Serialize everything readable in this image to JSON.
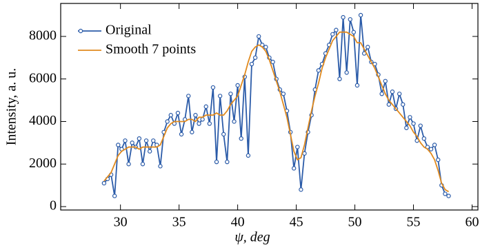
{
  "chart_data": {
    "type": "line",
    "xlabel": "ψ, deg",
    "ylabel": "Intensity, a. u.",
    "x": [
      28.6,
      28.9,
      29.2,
      29.5,
      29.8,
      30.1,
      30.4,
      30.7,
      31.0,
      31.3,
      31.6,
      31.9,
      32.2,
      32.5,
      32.8,
      33.1,
      33.4,
      33.7,
      34.0,
      34.3,
      34.6,
      34.9,
      35.2,
      35.5,
      35.8,
      36.1,
      36.4,
      36.7,
      37.0,
      37.3,
      37.6,
      37.9,
      38.2,
      38.5,
      38.8,
      39.1,
      39.4,
      39.7,
      40.0,
      40.3,
      40.6,
      40.9,
      41.2,
      41.5,
      41.8,
      42.1,
      42.4,
      42.7,
      43.0,
      43.3,
      43.6,
      43.9,
      44.2,
      44.5,
      44.8,
      45.1,
      45.4,
      45.7,
      46.0,
      46.3,
      46.6,
      46.9,
      47.2,
      47.5,
      47.8,
      48.1,
      48.4,
      48.7,
      49.0,
      49.3,
      49.6,
      49.9,
      50.2,
      50.5,
      50.8,
      51.1,
      51.4,
      51.7,
      52.0,
      52.3,
      52.6,
      52.9,
      53.2,
      53.5,
      53.8,
      54.1,
      54.4,
      54.7,
      55.0,
      55.3,
      55.6,
      55.9,
      56.2,
      56.5,
      56.8,
      57.1,
      57.4,
      57.7,
      58.0
    ],
    "series": [
      {
        "name": "Original",
        "color": "#2b5ba8",
        "markers": true,
        "values": [
          1100,
          1300,
          1500,
          500,
          2900,
          2700,
          3100,
          2000,
          3000,
          2800,
          3200,
          2000,
          3100,
          2600,
          3100,
          2900,
          1900,
          3500,
          4000,
          4300,
          3900,
          4400,
          3400,
          4100,
          5200,
          3500,
          4300,
          3900,
          4100,
          4700,
          3900,
          5600,
          2100,
          5200,
          3400,
          2100,
          5300,
          4000,
          5700,
          3200,
          6100,
          2400,
          6700,
          7000,
          8000,
          7600,
          7500,
          7000,
          6800,
          6000,
          5500,
          5300,
          4500,
          3500,
          1800,
          2800,
          800,
          2500,
          3500,
          4300,
          5500,
          6400,
          6700,
          7200,
          7600,
          8100,
          8300,
          6000,
          8900,
          6300,
          8800,
          8200,
          5700,
          9000,
          7200,
          7500,
          6800,
          6700,
          6200,
          5300,
          5900,
          4800,
          5400,
          4600,
          5300,
          4800,
          3700,
          4200,
          3900,
          3100,
          3800,
          3200,
          2800,
          2700,
          2900,
          2200,
          1000,
          600,
          500
        ]
      },
      {
        "name": "Smooth 7 points",
        "color": "#e08a1e",
        "markers": false,
        "values": [
          1200,
          1400,
          1600,
          2000,
          2400,
          2600,
          2700,
          2800,
          2800,
          2800,
          2700,
          2800,
          2800,
          2800,
          2800,
          2800,
          2900,
          3300,
          3700,
          3900,
          4000,
          4000,
          4000,
          4000,
          4100,
          4100,
          4000,
          4200,
          4200,
          4300,
          4300,
          4300,
          4400,
          4300,
          4300,
          4500,
          4800,
          5000,
          5200,
          5700,
          6200,
          6800,
          7300,
          7500,
          7600,
          7500,
          7300,
          6900,
          6400,
          5900,
          5400,
          4800,
          4200,
          3400,
          2600,
          2200,
          2300,
          2900,
          3700,
          4500,
          5200,
          5800,
          6500,
          7000,
          7400,
          7800,
          8000,
          8200,
          8200,
          8200,
          8100,
          8000,
          7700,
          7700,
          7400,
          7100,
          6800,
          6500,
          6100,
          5700,
          5300,
          5000,
          4800,
          4600,
          4400,
          4200,
          4000,
          3800,
          3500,
          3300,
          3000,
          2800,
          2700,
          2500,
          2200,
          1700,
          1100,
          800,
          700
        ]
      }
    ],
    "xlim": [
      24.9,
      60.5
    ],
    "ylim": [
      -160,
      9550
    ],
    "xticks": [
      30,
      35,
      40,
      45,
      50,
      55,
      60
    ],
    "yticks": [
      0,
      2000,
      4000,
      6000,
      8000
    ],
    "legend": "upper-left"
  }
}
